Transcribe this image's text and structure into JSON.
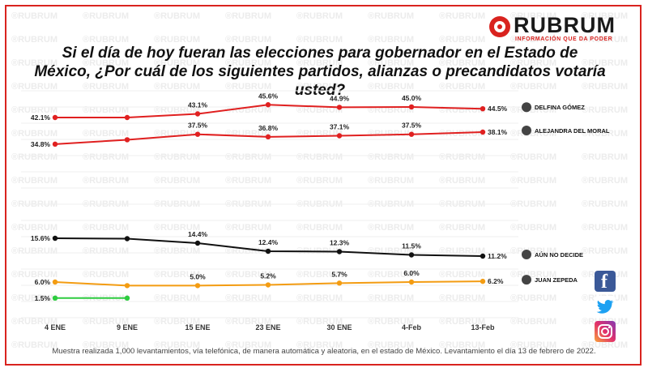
{
  "brand": {
    "name": "RUBRUM",
    "tagline": "INFORMACIÓN QUE DA PODER",
    "watermark": "RUBRUM"
  },
  "footnote": "Muestra realizada 1,000 levantamientos, vía telefónica, de manera automática y aleatoria, en el estado de México. Levantamiento el día 13 de febrero de 2022.",
  "social": [
    "facebook-icon",
    "twitter-icon",
    "instagram-icon"
  ],
  "chart_data": {
    "type": "line",
    "title": "Si el día de hoy fueran las elecciones para gobernador en el Estado de México, ¿Por cuál de los siguientes partidos, alianzas o precandidatos votaría usted?",
    "categories": [
      "4 ENE",
      "9 ENE",
      "15 ENE",
      "23 ENE",
      "30 ENE",
      "4-Feb",
      "13-Feb"
    ],
    "grid": true,
    "legend": "right",
    "series": [
      {
        "name": "DELFINA GÓMEZ",
        "color": "#e02020",
        "values": [
          42.1,
          42.1,
          43.1,
          45.6,
          44.9,
          45.0,
          44.5
        ]
      },
      {
        "name": "ALEJANDRA DEL MORAL",
        "color": "#e02020",
        "values": [
          34.8,
          36.0,
          37.5,
          36.8,
          37.1,
          37.5,
          38.1
        ]
      },
      {
        "name": "AÚN NO DECIDE",
        "color": "#111111",
        "values": [
          15.6,
          15.5,
          14.4,
          12.4,
          12.3,
          11.5,
          11.2
        ]
      },
      {
        "name": "JUAN ZEPEDA",
        "color": "#f39c12",
        "values": [
          6.0,
          5.0,
          5.0,
          5.2,
          5.7,
          6.0,
          6.2
        ]
      },
      {
        "name": "",
        "color": "#2ecc40",
        "values": [
          1.5,
          1.5,
          null,
          null,
          null,
          null,
          null
        ]
      }
    ],
    "labels": [
      [
        "42.1%",
        "",
        "43.1%",
        "45.6%",
        "44.9%",
        "45.0%",
        "44.5%"
      ],
      [
        "34.8%",
        "",
        "37.5%",
        "36.8%",
        "37.1%",
        "37.5%",
        "38.1%"
      ],
      [
        "15.6%",
        "",
        "14.4%",
        "12.4%",
        "12.3%",
        "11.5%",
        "11.2%"
      ],
      [
        "6.0%",
        "",
        "5.0%",
        "5.2%",
        "5.7%",
        "6.0%",
        "6.2%"
      ],
      [
        "1.5%",
        "",
        "",
        "",
        "",
        "",
        ""
      ]
    ]
  }
}
